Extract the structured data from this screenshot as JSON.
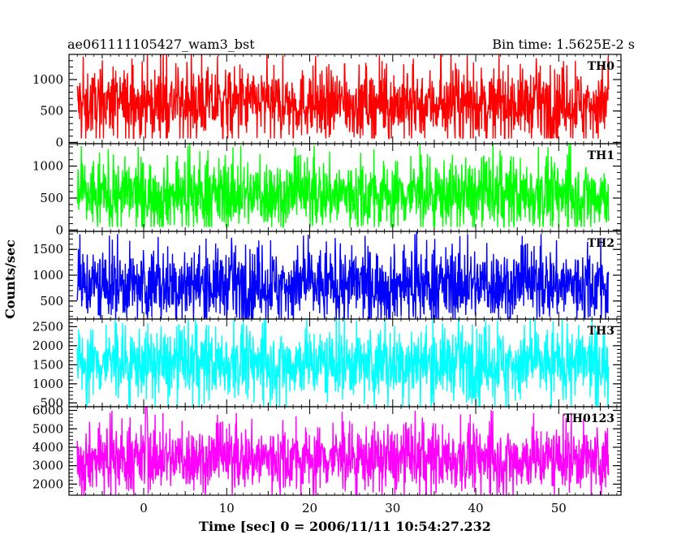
{
  "header": {
    "left": "ae061111105427_wam3_bst",
    "right": "Bin time: 1.5625E-2 s"
  },
  "axes": {
    "xlabel": "Time [sec] 0 = 2006/11/11 10:54:27.232",
    "ylabel": "Counts/sec"
  },
  "chart_data": {
    "type": "line",
    "xlim": [
      -9,
      57.5
    ],
    "x_ticks": [
      0,
      10,
      20,
      30,
      40,
      50
    ],
    "x_range_data": [
      -8,
      56
    ],
    "bin_time": 0.015625,
    "grid": false,
    "panels": [
      {
        "name": "TH0",
        "color": "#ff0000",
        "ylim": [
          -20,
          1400
        ],
        "y_ticks": [
          0,
          500,
          1000
        ],
        "mean": 620,
        "noise_low": 90,
        "noise_high": 1380
      },
      {
        "name": "TH1",
        "color": "#00ff00",
        "ylim": [
          -20,
          1350
        ],
        "y_ticks": [
          0,
          500,
          1000
        ],
        "mean": 560,
        "noise_low": 70,
        "noise_high": 1340
      },
      {
        "name": "TH2",
        "color": "#0000ff",
        "ylim": [
          150,
          1850
        ],
        "y_ticks": [
          500,
          1000,
          1500
        ],
        "mean": 820,
        "noise_low": 200,
        "noise_high": 1830
      },
      {
        "name": "TH3",
        "color": "#00ffff",
        "ylim": [
          400,
          2700
        ],
        "y_ticks": [
          500,
          1000,
          1500,
          2000,
          2500
        ],
        "mean": 1550,
        "noise_low": 550,
        "noise_high": 2680
      },
      {
        "name": "TH0123",
        "color": "#ff00ff",
        "ylim": [
          1400,
          6200
        ],
        "y_ticks": [
          2000,
          3000,
          4000,
          5000,
          6000
        ],
        "mean": 3400,
        "noise_low": 1700,
        "noise_high": 5800,
        "spike": {
          "x": 0.3,
          "y": 6150
        }
      }
    ]
  }
}
